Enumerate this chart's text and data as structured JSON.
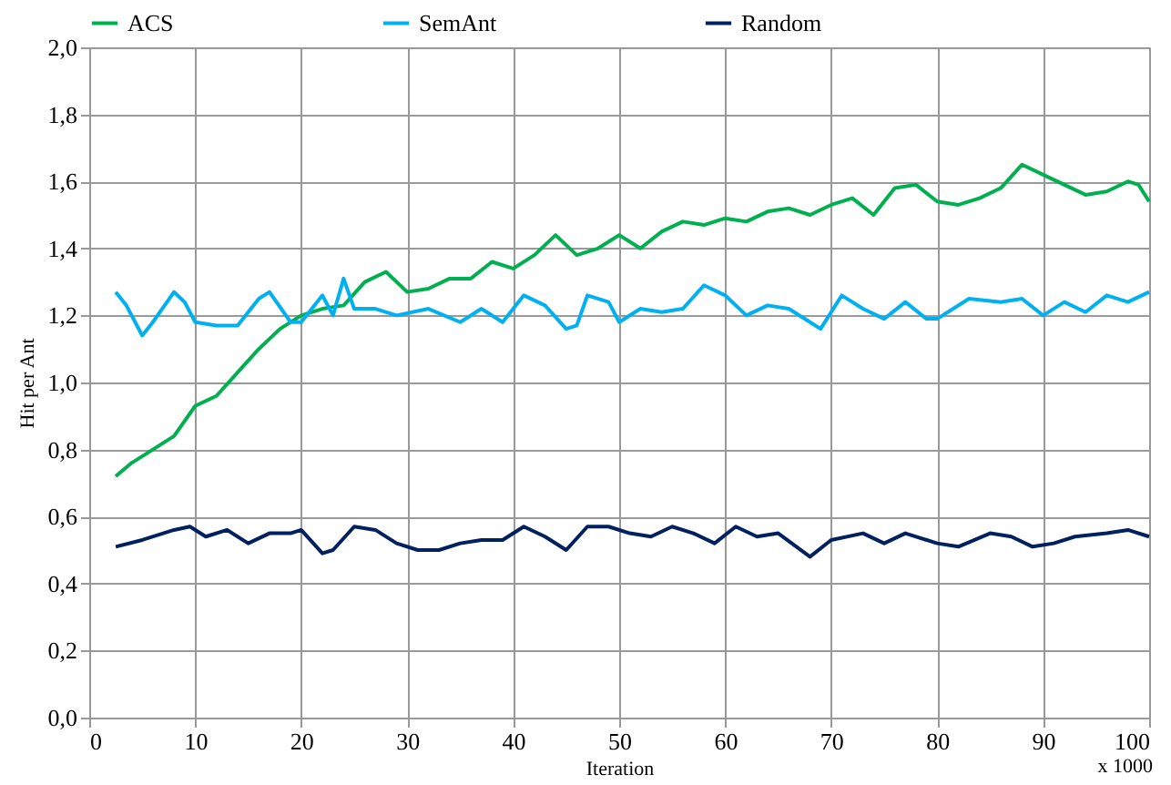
{
  "chart_data": {
    "type": "line",
    "xlabel": "Iteration",
    "ylabel": "Hit per Ant",
    "annotations": [
      "x 1000"
    ],
    "legend": "top",
    "grid": true,
    "line_style": "solid",
    "marker": "none",
    "xlim": [
      0,
      100
    ],
    "xticks": [
      0,
      10,
      20,
      30,
      40,
      50,
      60,
      70,
      80,
      90,
      100
    ],
    "ylim": [
      0,
      2
    ],
    "yticks": [
      {
        "value": 0,
        "label": "0,0"
      },
      {
        "value": 0.2,
        "label": "0,2"
      },
      {
        "value": 0.4,
        "label": "0,4"
      },
      {
        "value": 0.6,
        "label": "0,6"
      },
      {
        "value": 0.8,
        "label": "0,8"
      },
      {
        "value": 1,
        "label": "1,0"
      },
      {
        "value": 1.2,
        "label": "1,2"
      },
      {
        "value": 1.4,
        "label": "1,4"
      },
      {
        "value": 1.6,
        "label": "1,6"
      },
      {
        "value": 1.8,
        "label": "1,8"
      },
      {
        "value": 2,
        "label": "2,0"
      }
    ],
    "series": [
      {
        "name": "ACS",
        "color": "#00b050",
        "x": [
          2.5,
          4,
          6,
          8,
          10,
          12,
          14,
          16,
          18,
          20,
          22,
          24,
          26,
          28,
          30,
          32,
          34,
          36,
          38,
          40,
          42,
          44,
          46,
          48,
          50,
          52,
          54,
          56,
          58,
          60,
          62,
          64,
          66,
          68,
          70,
          72,
          74,
          76,
          78,
          80,
          82,
          84,
          86,
          88,
          90,
          92,
          94,
          96,
          98,
          99,
          100
        ],
        "values": [
          0.72,
          0.76,
          0.8,
          0.84,
          0.93,
          0.96,
          1.03,
          1.1,
          1.16,
          1.2,
          1.22,
          1.23,
          1.3,
          1.33,
          1.27,
          1.28,
          1.31,
          1.31,
          1.36,
          1.34,
          1.38,
          1.44,
          1.38,
          1.4,
          1.44,
          1.4,
          1.45,
          1.48,
          1.47,
          1.49,
          1.48,
          1.51,
          1.52,
          1.5,
          1.53,
          1.55,
          1.5,
          1.58,
          1.59,
          1.54,
          1.53,
          1.55,
          1.58,
          1.65,
          1.62,
          1.59,
          1.56,
          1.57,
          1.6,
          1.59,
          1.54
        ]
      },
      {
        "name": "SemAnt",
        "color": "#00b0f0",
        "x": [
          2.5,
          3.5,
          5,
          6,
          8,
          9,
          10,
          12,
          14,
          16,
          17,
          19,
          20,
          22,
          23,
          24,
          25,
          27,
          29,
          32,
          35,
          37,
          39,
          41,
          43,
          45,
          46,
          47,
          49,
          50,
          52,
          54,
          56,
          58,
          60,
          62,
          64,
          66,
          68,
          69,
          71,
          73,
          75,
          77,
          79,
          80,
          83,
          86,
          88,
          90,
          92,
          94,
          96,
          98,
          100
        ],
        "values": [
          1.27,
          1.23,
          1.14,
          1.18,
          1.27,
          1.24,
          1.18,
          1.17,
          1.17,
          1.25,
          1.27,
          1.18,
          1.18,
          1.26,
          1.2,
          1.31,
          1.22,
          1.22,
          1.2,
          1.22,
          1.18,
          1.22,
          1.18,
          1.26,
          1.23,
          1.16,
          1.17,
          1.26,
          1.24,
          1.18,
          1.22,
          1.21,
          1.22,
          1.29,
          1.26,
          1.2,
          1.23,
          1.22,
          1.18,
          1.16,
          1.26,
          1.22,
          1.19,
          1.24,
          1.19,
          1.19,
          1.25,
          1.24,
          1.25,
          1.2,
          1.24,
          1.21,
          1.26,
          1.24,
          1.27
        ]
      },
      {
        "name": "Random",
        "color": "#002060",
        "x": [
          2.5,
          5,
          8,
          9.5,
          11,
          13,
          15,
          17,
          19,
          20,
          22,
          23,
          25,
          27,
          29,
          31,
          33,
          35,
          37,
          39,
          41,
          43,
          45,
          47,
          49,
          51,
          53,
          55,
          57,
          59,
          61,
          63,
          65,
          68,
          70,
          73,
          75,
          77,
          80,
          82,
          85,
          87,
          89,
          91,
          93,
          96,
          98,
          100
        ],
        "values": [
          0.51,
          0.53,
          0.56,
          0.57,
          0.54,
          0.56,
          0.52,
          0.55,
          0.55,
          0.56,
          0.49,
          0.5,
          0.57,
          0.56,
          0.52,
          0.5,
          0.5,
          0.52,
          0.53,
          0.53,
          0.57,
          0.54,
          0.5,
          0.57,
          0.57,
          0.55,
          0.54,
          0.57,
          0.55,
          0.52,
          0.57,
          0.54,
          0.55,
          0.48,
          0.53,
          0.55,
          0.52,
          0.55,
          0.52,
          0.51,
          0.55,
          0.54,
          0.51,
          0.52,
          0.54,
          0.55,
          0.56,
          0.54
        ]
      }
    ]
  }
}
